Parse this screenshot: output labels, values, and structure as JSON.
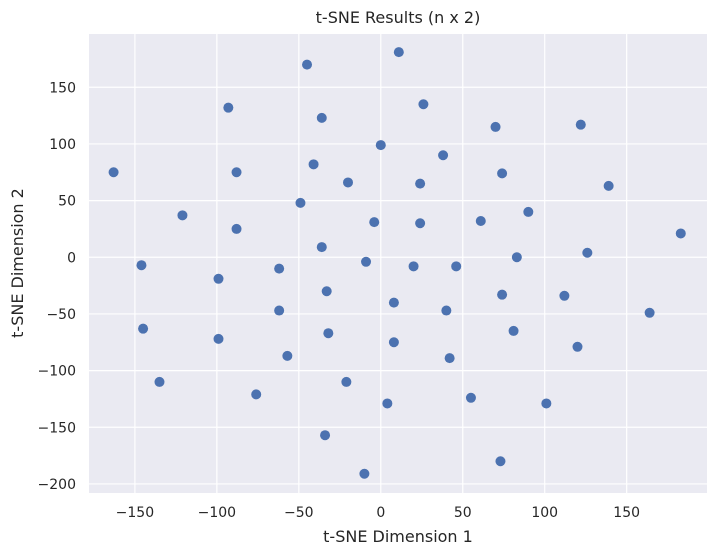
{
  "chart_data": {
    "type": "scatter",
    "title": "t-SNE Results (n x 2)",
    "xlabel": "t-SNE Dimension 1",
    "ylabel": "t-SNE Dimension 2",
    "xlim": [
      -178,
      199
    ],
    "ylim": [
      -208,
      197
    ],
    "xticks": [
      -150,
      -100,
      -50,
      0,
      50,
      100,
      150
    ],
    "yticks": [
      -200,
      -150,
      -100,
      -50,
      0,
      50,
      100,
      150
    ],
    "grid": true,
    "style": {
      "background": "#EAEAF2",
      "grid_color": "#FFFFFF",
      "point_color": "#4C72B0"
    },
    "series": [
      {
        "points": [
          [
            -163,
            75
          ],
          [
            -146,
            -7
          ],
          [
            -145,
            -63
          ],
          [
            -135,
            -110
          ],
          [
            -121,
            37
          ],
          [
            -99,
            -19
          ],
          [
            -99,
            -72
          ],
          [
            -93,
            132
          ],
          [
            -88,
            75
          ],
          [
            -88,
            25
          ],
          [
            -76,
            -121
          ],
          [
            -62,
            -10
          ],
          [
            -62,
            -47
          ],
          [
            -57,
            -87
          ],
          [
            -49,
            48
          ],
          [
            -45,
            170
          ],
          [
            -41,
            82
          ],
          [
            -36,
            123
          ],
          [
            -36,
            9
          ],
          [
            -34,
            -157
          ],
          [
            -33,
            -30
          ],
          [
            -32,
            -67
          ],
          [
            -21,
            -110
          ],
          [
            -20,
            66
          ],
          [
            -10,
            -191
          ],
          [
            -9,
            -4
          ],
          [
            -4,
            31
          ],
          [
            0,
            99
          ],
          [
            4,
            -129
          ],
          [
            8,
            -40
          ],
          [
            8,
            -75
          ],
          [
            11,
            181
          ],
          [
            20,
            -8
          ],
          [
            24,
            30
          ],
          [
            24,
            65
          ],
          [
            26,
            135
          ],
          [
            38,
            90
          ],
          [
            40,
            -47
          ],
          [
            42,
            -89
          ],
          [
            46,
            -8
          ],
          [
            55,
            -124
          ],
          [
            61,
            32
          ],
          [
            70,
            115
          ],
          [
            73,
            -180
          ],
          [
            74,
            74
          ],
          [
            74,
            -33
          ],
          [
            81,
            -65
          ],
          [
            83,
            0
          ],
          [
            90,
            40
          ],
          [
            101,
            -129
          ],
          [
            112,
            -34
          ],
          [
            120,
            -79
          ],
          [
            122,
            117
          ],
          [
            126,
            4
          ],
          [
            139,
            63
          ],
          [
            164,
            -49
          ],
          [
            183,
            21
          ]
        ]
      }
    ]
  }
}
